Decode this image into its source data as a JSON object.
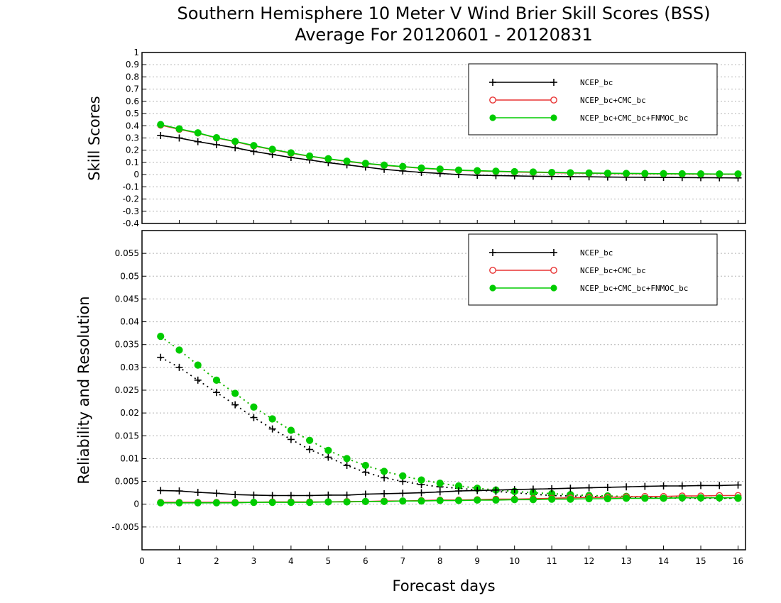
{
  "chart_data": [
    {
      "type": "line",
      "title": "Southern Hemisphere 10 Meter V Wind Brier Skill Scores (BSS)",
      "subtitle": "Average For 20120601 - 20120831",
      "ylabel": "Skill Scores",
      "xlabel": "",
      "ylim": [
        -0.4,
        1
      ],
      "xlim": [
        0,
        16.2
      ],
      "yticks": [
        "-0.4",
        "-0.3",
        "-0.2",
        "-0.1",
        "0",
        "0.1",
        "0.2",
        "0.3",
        "0.4",
        "0.5",
        "0.6",
        "0.7",
        "0.8",
        "0.9",
        "1"
      ],
      "grid": true,
      "legend_position": "top-right",
      "x": [
        0.5,
        1,
        1.5,
        2,
        2.5,
        3,
        3.5,
        4,
        4.5,
        5,
        5.5,
        6,
        6.5,
        7,
        7.5,
        8,
        8.5,
        9,
        9.5,
        10,
        10.5,
        11,
        11.5,
        12,
        12.5,
        13,
        13.5,
        14,
        14.5,
        15,
        15.5,
        16
      ],
      "series": [
        {
          "name": "NCEP_bc",
          "color": "#000000",
          "marker": "plus",
          "values": [
            0.32,
            0.3,
            0.27,
            0.245,
            0.22,
            0.19,
            0.165,
            0.14,
            0.12,
            0.098,
            0.08,
            0.062,
            0.043,
            0.03,
            0.018,
            0.01,
            0.0,
            -0.005,
            -0.008,
            -0.01,
            -0.013,
            -0.015,
            -0.017,
            -0.018,
            -0.02,
            -0.021,
            -0.022,
            -0.023,
            -0.024,
            -0.025,
            -0.026,
            -0.027
          ]
        },
        {
          "name": "NCEP_bc+CMC_bc",
          "color": "#e83232",
          "marker": "open-circle",
          "values": [
            0.405,
            0.37,
            0.34,
            0.3,
            0.27,
            0.235,
            0.205,
            0.175,
            0.15,
            0.128,
            0.108,
            0.09,
            0.076,
            0.064,
            0.052,
            0.043,
            0.035,
            0.03,
            0.026,
            0.022,
            0.019,
            0.016,
            0.013,
            0.011,
            0.009,
            0.008,
            0.007,
            0.006,
            0.005,
            0.004,
            0.003,
            0.003
          ]
        },
        {
          "name": "NCEP_bc+CMC_bc+FNMOC_bc",
          "color": "#00cc00",
          "marker": "filled-circle",
          "values": [
            0.41,
            0.375,
            0.342,
            0.302,
            0.272,
            0.238,
            0.207,
            0.178,
            0.152,
            0.13,
            0.11,
            0.092,
            0.078,
            0.066,
            0.054,
            0.045,
            0.037,
            0.032,
            0.028,
            0.024,
            0.021,
            0.018,
            0.015,
            0.013,
            0.011,
            0.01,
            0.009,
            0.008,
            0.007,
            0.006,
            0.005,
            0.005
          ]
        }
      ]
    },
    {
      "type": "line",
      "ylabel": "Reliability and Resolution",
      "xlabel": "Forecast days",
      "ylim": [
        -0.01,
        0.06
      ],
      "xlim": [
        0,
        16.2
      ],
      "xticks": [
        "0",
        "1",
        "2",
        "3",
        "4",
        "5",
        "6",
        "7",
        "8",
        "9",
        "10",
        "11",
        "12",
        "13",
        "14",
        "15",
        "16"
      ],
      "yticks": [
        "-0.005",
        "0",
        "0.005",
        "0.01",
        "0.015",
        "0.02",
        "0.025",
        "0.03",
        "0.035",
        "0.04",
        "0.045",
        "0.05",
        "0.055"
      ],
      "grid": true,
      "legend_position": "top-right",
      "x": [
        0.5,
        1,
        1.5,
        2,
        2.5,
        3,
        3.5,
        4,
        4.5,
        5,
        5.5,
        6,
        6.5,
        7,
        7.5,
        8,
        8.5,
        9,
        9.5,
        10,
        10.5,
        11,
        11.5,
        12,
        12.5,
        13,
        13.5,
        14,
        14.5,
        15,
        15.5,
        16
      ],
      "series": [
        {
          "name": "NCEP_bc",
          "color": "#000000",
          "marker": "plus",
          "dash": "dotted",
          "values": [
            0.0322,
            0.03,
            0.0272,
            0.0245,
            0.0218,
            0.019,
            0.0165,
            0.0142,
            0.012,
            0.0103,
            0.0085,
            0.007,
            0.0058,
            0.005,
            0.0043,
            0.0038,
            0.0035,
            0.0031,
            0.0028,
            0.0025,
            0.0022,
            0.0019,
            0.0018,
            0.0017,
            0.0016,
            0.0015,
            0.0014,
            0.0014,
            0.0013,
            0.0013,
            0.0013,
            0.0013
          ]
        },
        {
          "name": "NCEP_bc+CMC_bc",
          "color": "#e83232",
          "marker": "open-circle",
          "dash": "dotted",
          "values": [
            0.0368,
            0.0338,
            0.0305,
            0.0272,
            0.0243,
            0.0213,
            0.0187,
            0.0162,
            0.014,
            0.0118,
            0.01,
            0.0085,
            0.0072,
            0.0062,
            0.0053,
            0.0046,
            0.004,
            0.0035,
            0.0031,
            0.0028,
            0.0025,
            0.0023,
            0.0021,
            0.0019,
            0.0018,
            0.0017,
            0.0016,
            0.0015,
            0.0015,
            0.0014,
            0.0014,
            0.0013
          ]
        },
        {
          "name": "NCEP_bc+CMC_bc+FNMOC_bc",
          "color": "#00cc00",
          "marker": "filled-circle",
          "dash": "dotted",
          "values": [
            0.0368,
            0.0338,
            0.0305,
            0.0272,
            0.0243,
            0.0213,
            0.0187,
            0.0162,
            0.014,
            0.0118,
            0.01,
            0.0085,
            0.0072,
            0.0062,
            0.0053,
            0.0046,
            0.004,
            0.0035,
            0.0031,
            0.0028,
            0.0025,
            0.0023,
            0.0021,
            0.0019,
            0.0018,
            0.0017,
            0.0016,
            0.0015,
            0.0015,
            0.0014,
            0.0014,
            0.0013
          ]
        },
        {
          "name": "NCEP_bc",
          "color": "#000000",
          "marker": "plus",
          "dash": "solid",
          "values": [
            0.003,
            0.0029,
            0.0026,
            0.0024,
            0.0021,
            0.002,
            0.0019,
            0.0019,
            0.0019,
            0.002,
            0.002,
            0.0022,
            0.0023,
            0.0024,
            0.0025,
            0.0027,
            0.0029,
            0.003,
            0.0031,
            0.0032,
            0.0033,
            0.0034,
            0.0035,
            0.0036,
            0.0037,
            0.0038,
            0.0039,
            0.004,
            0.004,
            0.0041,
            0.0041,
            0.0042
          ]
        },
        {
          "name": "NCEP_bc+CMC_bc",
          "color": "#e83232",
          "marker": "open-circle",
          "dash": "solid",
          "values": [
            0.0004,
            0.0004,
            0.0004,
            0.0004,
            0.0004,
            0.0004,
            0.0005,
            0.0005,
            0.0005,
            0.0005,
            0.0006,
            0.0006,
            0.0007,
            0.0007,
            0.0008,
            0.0009,
            0.0009,
            0.001,
            0.0011,
            0.0011,
            0.0012,
            0.0013,
            0.0014,
            0.0015,
            0.0015,
            0.0016,
            0.0017,
            0.0017,
            0.0018,
            0.0018,
            0.0019,
            0.0019
          ]
        },
        {
          "name": "NCEP_bc+CMC_bc+FNMOC_bc",
          "color": "#00cc00",
          "marker": "filled-circle",
          "dash": "solid",
          "values": [
            0.0003,
            0.0003,
            0.0003,
            0.0003,
            0.0003,
            0.0004,
            0.0004,
            0.0004,
            0.0004,
            0.0005,
            0.0005,
            0.0006,
            0.0006,
            0.0007,
            0.0007,
            0.0008,
            0.0008,
            0.0009,
            0.0009,
            0.001,
            0.001,
            0.0011,
            0.0011,
            0.0012,
            0.0012,
            0.0013,
            0.0013,
            0.0013,
            0.0014,
            0.0014,
            0.0014,
            0.0014
          ]
        }
      ]
    }
  ]
}
